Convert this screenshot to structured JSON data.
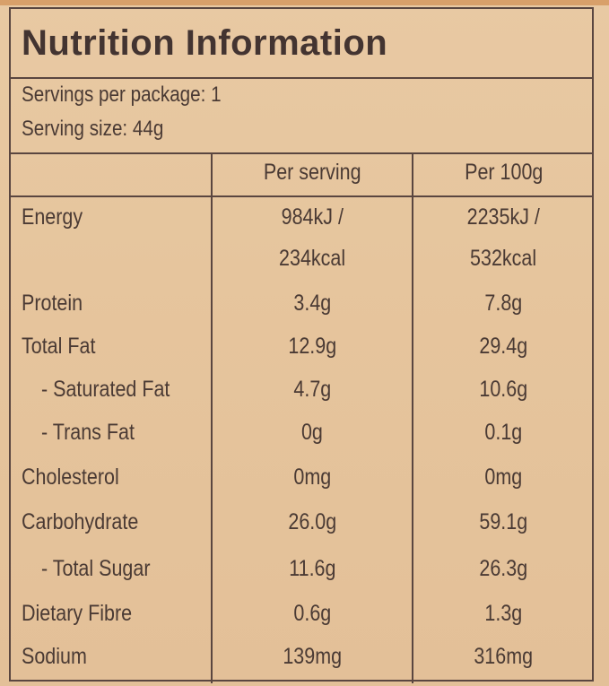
{
  "title": "Nutrition Information",
  "servings_per_package": "Servings per package: 1",
  "serving_size": "Serving size: 44g",
  "columns": {
    "per_serving": "Per serving",
    "per_100g": "Per 100g"
  },
  "rows": [
    {
      "label": "Energy",
      "per_serving": "984kJ /",
      "per_100g": "2235kJ /"
    },
    {
      "label": "",
      "per_serving": "234kcal",
      "per_100g": "532kcal"
    },
    {
      "label": "Protein",
      "per_serving": "3.4g",
      "per_100g": "7.8g"
    },
    {
      "label": "Total Fat",
      "per_serving": "12.9g",
      "per_100g": "29.4g"
    },
    {
      "label": "- Saturated Fat",
      "per_serving": "4.7g",
      "per_100g": "10.6g"
    },
    {
      "label": "- Trans Fat",
      "per_serving": "0g",
      "per_100g": "0.1g"
    },
    {
      "label": "Cholesterol",
      "per_serving": "0mg",
      "per_100g": "0mg"
    },
    {
      "label": "Carbohydrate",
      "per_serving": "26.0g",
      "per_100g": "59.1g"
    },
    {
      "label": "- Total Sugar",
      "per_serving": "11.6g",
      "per_100g": "26.3g"
    },
    {
      "label": "Dietary Fibre",
      "per_serving": "0.6g",
      "per_100g": "1.3g"
    },
    {
      "label": "Sodium",
      "per_serving": "139mg",
      "per_100g": "316mg"
    }
  ]
}
